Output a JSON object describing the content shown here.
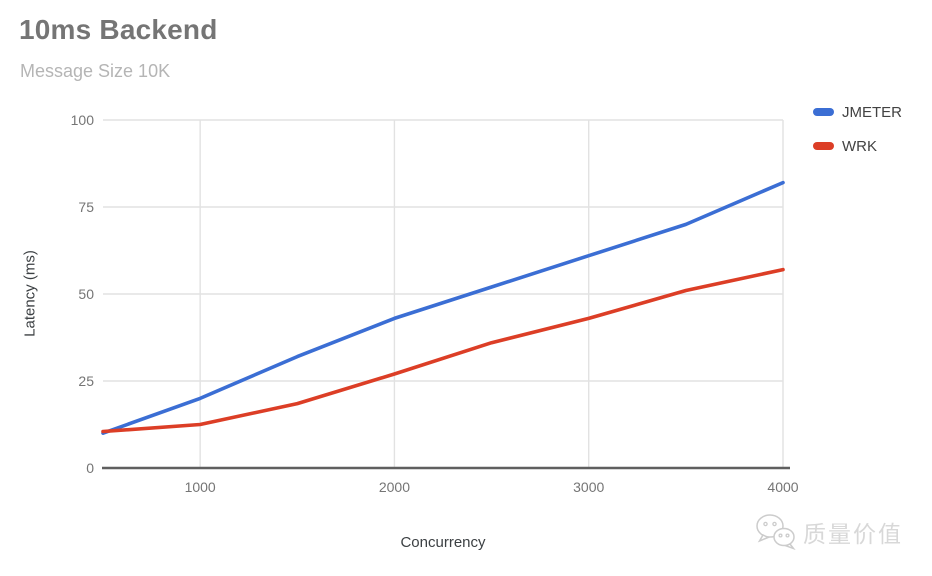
{
  "chart_data": {
    "type": "line",
    "title": "10ms Backend",
    "subtitle": "Message Size 10K",
    "xlabel": "Concurrency",
    "ylabel": "Latency (ms)",
    "x": [
      500,
      1000,
      1500,
      2000,
      2500,
      3000,
      3500,
      4000
    ],
    "series": [
      {
        "name": "JMETER",
        "color": "#3b6ed4",
        "values": [
          10,
          20,
          32,
          43,
          52,
          61,
          70,
          82
        ]
      },
      {
        "name": "WRK",
        "color": "#dc3e26",
        "values": [
          10.5,
          12.5,
          18.5,
          27,
          36,
          43,
          51,
          57
        ]
      }
    ],
    "xticks": [
      "1000",
      "2000",
      "3000",
      "4000"
    ],
    "xtick_values": [
      1000,
      2000,
      3000,
      4000
    ],
    "yticks": [
      "0",
      "25",
      "50",
      "75",
      "100"
    ],
    "ytick_values": [
      0,
      25,
      50,
      75,
      100
    ],
    "xlim": [
      500,
      4000
    ],
    "ylim": [
      0,
      100
    ],
    "grid": true,
    "gridline_color": "#e2e2e2",
    "axis_line_color": "#5f5f5f",
    "legend_position": "top-right"
  },
  "watermark": {
    "text": "质量价值",
    "icon": "wechat-logo-icon"
  }
}
